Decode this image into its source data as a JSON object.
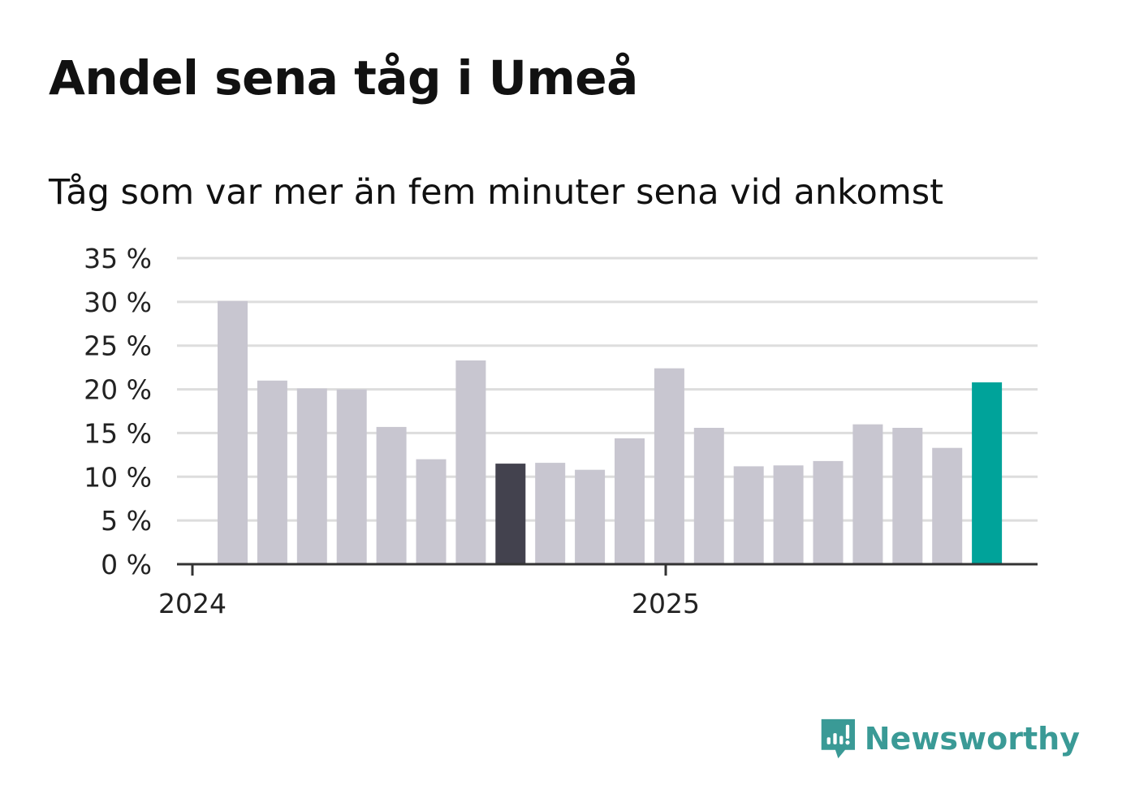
{
  "title": "Andel sena tåg i Umeå",
  "subtitle": "Tåg som var mer än fem minuter sena vid ankomst",
  "brand": {
    "name": "Newsworthy",
    "icon": "newsworthy-logo-icon",
    "color": "#3a9a96"
  },
  "colors": {
    "default_bar": "#c8c6d0",
    "highlight_dark": "#43424e",
    "highlight_latest": "#00a39a",
    "grid": "#dddddd",
    "axis": "#333333"
  },
  "chart_data": {
    "type": "bar",
    "title": "Andel sena tåg i Umeå",
    "subtitle": "Tåg som var mer än fem minuter sena vid ankomst",
    "xlabel": "",
    "ylabel": "",
    "ylim": [
      0,
      35
    ],
    "yticks": [
      "0 %",
      "5 %",
      "10 %",
      "15 %",
      "20 %",
      "25 %",
      "30 %",
      "35 %"
    ],
    "x_tick_labels": [
      "2024",
      "2025"
    ],
    "grid": true,
    "values": [
      30.1,
      21.0,
      20.1,
      20.0,
      15.7,
      12.0,
      23.3,
      11.5,
      11.6,
      10.8,
      14.4,
      22.4,
      15.6,
      11.2,
      11.3,
      11.8,
      16.0,
      15.6,
      13.3,
      20.8
    ],
    "bar_colors": [
      "default",
      "default",
      "default",
      "default",
      "default",
      "default",
      "default",
      "highlight_dark",
      "default",
      "default",
      "default",
      "default",
      "default",
      "default",
      "default",
      "default",
      "default",
      "default",
      "default",
      "highlight_latest"
    ]
  }
}
